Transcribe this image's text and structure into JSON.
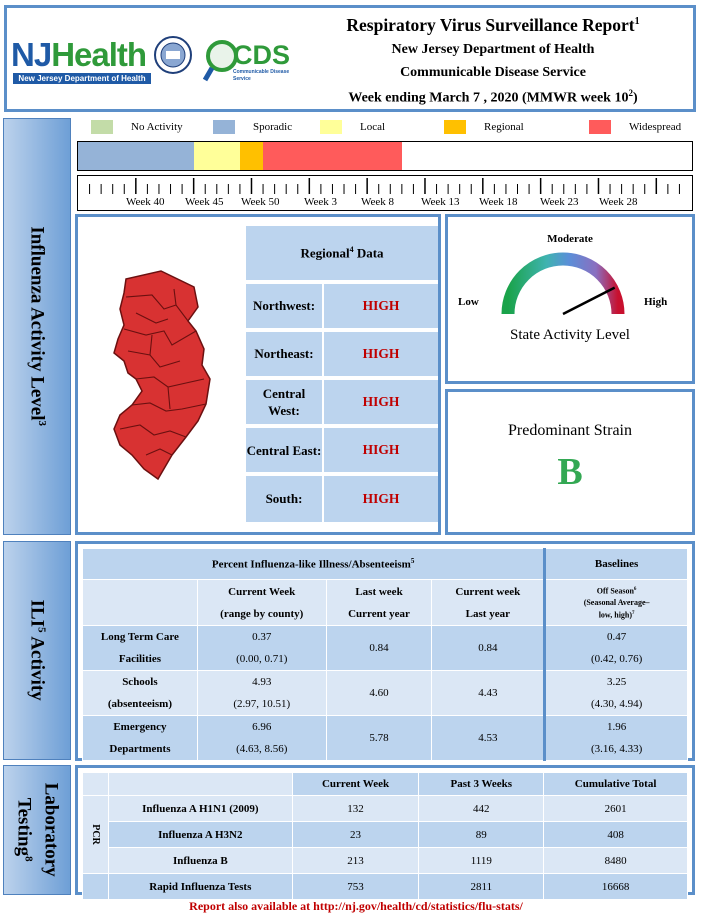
{
  "header": {
    "title": "Respiratory Virus Surveillance Report",
    "title_sup": "1",
    "line2": "New Jersey Department of Health",
    "line3": "Communicable Disease Service",
    "line4": "Week ending March 7 , 2020 (MMWR week 10",
    "line4_sup": "2",
    "line4_end": ")",
    "logo_nj": "NJ",
    "logo_health": "Health",
    "logo_sub": "New Jersey Department of Health",
    "logo_cds": "CDS",
    "logo_cds_sub": "Communicable Disease Service"
  },
  "legend": [
    {
      "label": "No Activity",
      "color": "#c3dca8"
    },
    {
      "label": "Sporadic",
      "color": "#95b3d7"
    },
    {
      "label": "Local",
      "color": "#ffff99"
    },
    {
      "label": "Regional",
      "color": "#ffc000"
    },
    {
      "label": "Widespread",
      "color": "#ff5b5b"
    }
  ],
  "activity_bar": {
    "segments": [
      {
        "level": "Sporadic",
        "weeks": 10,
        "color": "#95b3d7"
      },
      {
        "level": "Local",
        "weeks": 4,
        "color": "#ffff99"
      },
      {
        "level": "Regional",
        "weeks": 2,
        "color": "#ffc000"
      },
      {
        "level": "Widespread",
        "weeks": 12,
        "color": "#ff5b5b"
      }
    ],
    "total_weeks": 53
  },
  "week_labels": [
    "Week 40",
    "Week 45",
    "Week 50",
    "Week 3",
    "Week 8",
    "Week 13",
    "Week 18",
    "Week 23",
    "Week 28"
  ],
  "side_labels": {
    "influenza": "Influenza Activity Level",
    "influenza_sup": "3",
    "ili": "ILI",
    "ili_sup": "5",
    "ili_rest": " Activity",
    "lab1": "Laboratory",
    "lab2": "Testing",
    "lab_sup": "8"
  },
  "regional": {
    "title": "Regional",
    "title_sup": "4",
    "title_rest": " Data",
    "rows": [
      {
        "region": "Northwest:",
        "value": "HIGH"
      },
      {
        "region": "Northeast:",
        "value": "HIGH"
      },
      {
        "region": "Central West:",
        "value": "HIGH"
      },
      {
        "region": "Central East:",
        "value": "HIGH"
      },
      {
        "region": "South:",
        "value": "HIGH"
      }
    ]
  },
  "gauge": {
    "top": "Moderate",
    "left": "Low",
    "right": "High",
    "caption": "State Activity Level",
    "level_fraction": 0.85
  },
  "strain": {
    "title": "Predominant Strain",
    "value": "B",
    "color": "#33a853"
  },
  "ili": {
    "header": "Percent Influenza-like Illness/Absenteeism",
    "header_sup": "5",
    "baselines": "Baselines",
    "col1a": "Current Week",
    "col1b": "(range by county)",
    "col2a": "Last week",
    "col2b": "Current year",
    "col3a": "Current week",
    "col3b": "Last year",
    "col4a": "Off Season",
    "col4a_sup": "6",
    "col4b": "(Seasonal Average–",
    "col4c": "low, high)",
    "col4c_sup": "7",
    "rows": [
      {
        "name1": "Long Term Care",
        "name2": "Facilities",
        "cur": "0.37",
        "cur_range": "(0.00, 0.71)",
        "last": "0.84",
        "lastyear": "0.84",
        "base": "0.47",
        "base_range": "(0.42, 0.76)"
      },
      {
        "name1": "Schools",
        "name2": "(absenteeism)",
        "cur": "4.93",
        "cur_range": "(2.97, 10.51)",
        "last": "4.60",
        "lastyear": "4.43",
        "base": "3.25",
        "base_range": "(4.30, 4.94)"
      },
      {
        "name1": "Emergency",
        "name2": "Departments",
        "cur": "6.96",
        "cur_range": "(4.63, 8.56)",
        "last": "5.78",
        "lastyear": "4.53",
        "base": "1.96",
        "base_range": "(3.16, 4.33)"
      }
    ]
  },
  "lab": {
    "col1": "Current Week",
    "col2": "Past 3 Weeks",
    "col3": "Cumulative Total",
    "pcr": "PCR",
    "rows": [
      {
        "name": "Influenza A H1N1 (2009)",
        "cur": "132",
        "past3": "442",
        "cum": "2601"
      },
      {
        "name": "Influenza A H3N2",
        "cur": "23",
        "past3": "89",
        "cum": "408"
      },
      {
        "name": "Influenza B",
        "cur": "213",
        "past3": "1119",
        "cum": "8480"
      },
      {
        "name": "Rapid Influenza Tests",
        "cur": "753",
        "past3": "2811",
        "cum": "16668"
      }
    ]
  },
  "footer": "Report also available at http://nj.gov/health/cd/statistics/flu-stats/"
}
